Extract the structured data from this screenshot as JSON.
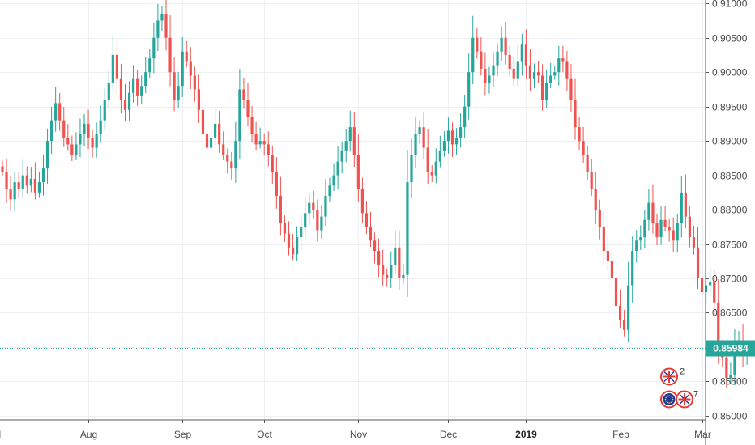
{
  "chart_data": {
    "type": "candlestick",
    "colors": {
      "up": "#26a69a",
      "down": "#ef5350",
      "grid": "#eef0f3",
      "axis": "#555555",
      "last_price_line": "#26a69a",
      "last_price_tag_bg": "#26a69a"
    },
    "y_axis": {
      "position": "right",
      "ylim": [
        0.8494,
        0.9105
      ],
      "ticks": [
        "0.91000",
        "0.90500",
        "0.90000",
        "0.89500",
        "0.89000",
        "0.88500",
        "0.88000",
        "0.87500",
        "0.87000",
        "0.86500",
        "0.86000",
        "0.85500",
        "0.85000"
      ]
    },
    "x_axis": {
      "labels": [
        {
          "text": "Jul",
          "index": -2,
          "bold": false
        },
        {
          "text": "Aug",
          "index": 21,
          "bold": false
        },
        {
          "text": "Sep",
          "index": 44,
          "bold": false
        },
        {
          "text": "Oct",
          "index": 64,
          "bold": false
        },
        {
          "text": "Nov",
          "index": 87,
          "bold": false
        },
        {
          "text": "Dec",
          "index": 109,
          "bold": false
        },
        {
          "text": "2019",
          "index": 128,
          "bold": true
        },
        {
          "text": "Feb",
          "index": 151,
          "bold": false
        },
        {
          "text": "Mar",
          "index": 171,
          "bold": false
        }
      ]
    },
    "last_price": {
      "value": 0.85984,
      "label": "0.85984"
    },
    "event_markers": [
      {
        "label": "2",
        "icon": "uk-flag-icon",
        "value": 0.8557
      },
      {
        "label": "7",
        "icon": "eu-flag-icon",
        "value": 0.8524
      },
      {
        "label": "7",
        "icon": "uk-flag-icon",
        "value": 0.8524
      }
    ],
    "closes": [
      0.8855,
      0.883,
      0.8815,
      0.884,
      0.883,
      0.885,
      0.8835,
      0.8845,
      0.8825,
      0.884,
      0.886,
      0.89,
      0.893,
      0.8955,
      0.893,
      0.8905,
      0.8895,
      0.888,
      0.8895,
      0.891,
      0.8925,
      0.8905,
      0.889,
      0.891,
      0.893,
      0.896,
      0.8985,
      0.9025,
      0.899,
      0.896,
      0.8945,
      0.897,
      0.899,
      0.8965,
      0.898,
      0.9,
      0.902,
      0.905,
      0.9075,
      0.9085,
      0.905,
      0.9,
      0.896,
      0.898,
      0.903,
      0.9015,
      0.8995,
      0.8975,
      0.8945,
      0.891,
      0.889,
      0.8905,
      0.8925,
      0.8895,
      0.888,
      0.887,
      0.886,
      0.89,
      0.8975,
      0.896,
      0.8935,
      0.891,
      0.8895,
      0.89,
      0.8895,
      0.888,
      0.8855,
      0.882,
      0.878,
      0.8765,
      0.8745,
      0.8735,
      0.876,
      0.8775,
      0.8795,
      0.881,
      0.88,
      0.877,
      0.879,
      0.882,
      0.8835,
      0.885,
      0.887,
      0.8885,
      0.89,
      0.892,
      0.888,
      0.883,
      0.8795,
      0.8775,
      0.8755,
      0.874,
      0.872,
      0.8705,
      0.87,
      0.872,
      0.8745,
      0.87,
      0.8705,
      0.884,
      0.888,
      0.891,
      0.892,
      0.889,
      0.8855,
      0.885,
      0.887,
      0.8885,
      0.89,
      0.8915,
      0.8895,
      0.8905,
      0.892,
      0.895,
      0.9,
      0.905,
      0.903,
      0.9005,
      0.8985,
      0.8995,
      0.901,
      0.903,
      0.905,
      0.9025,
      0.9005,
      0.899,
      0.9015,
      0.904,
      0.901,
      0.899,
      0.9,
      0.8995,
      0.896,
      0.8985,
      0.8995,
      0.9,
      0.902,
      0.9015,
      0.899,
      0.896,
      0.892,
      0.89,
      0.888,
      0.8855,
      0.883,
      0.88,
      0.8775,
      0.874,
      0.8725,
      0.87,
      0.866,
      0.864,
      0.8625,
      0.869,
      0.874,
      0.8755,
      0.876,
      0.8785,
      0.881,
      0.878,
      0.876,
      0.8785,
      0.8775,
      0.877,
      0.8755,
      0.878,
      0.8825,
      0.879,
      0.876,
      0.8745,
      0.87,
      0.868,
      0.869,
      0.8695,
      0.8665,
      0.86,
      0.8585,
      0.8555,
      0.856,
      0.8605,
      0.861,
      0.859,
      0.8598
    ]
  }
}
